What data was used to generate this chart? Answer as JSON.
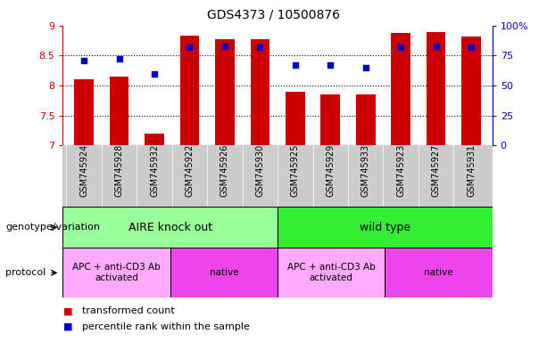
{
  "title": "GDS4373 / 10500876",
  "samples": [
    "GSM745924",
    "GSM745928",
    "GSM745932",
    "GSM745922",
    "GSM745926",
    "GSM745930",
    "GSM745925",
    "GSM745929",
    "GSM745933",
    "GSM745923",
    "GSM745927",
    "GSM745931"
  ],
  "red_values": [
    8.1,
    8.15,
    7.2,
    8.83,
    8.77,
    8.78,
    7.9,
    7.85,
    7.85,
    8.88,
    8.9,
    8.82
  ],
  "blue_values": [
    71,
    72,
    60,
    82,
    83,
    82,
    67,
    67,
    65,
    82,
    83,
    82
  ],
  "ylim_left": [
    7.0,
    9.0
  ],
  "yticks_left": [
    7.0,
    7.5,
    8.0,
    8.5,
    9.0
  ],
  "ytick_labels_left": [
    "7",
    "7.5",
    "8",
    "8.5",
    "9"
  ],
  "ytick_labels_right": [
    "0",
    "25",
    "50",
    "75",
    "100%"
  ],
  "hlines": [
    7.5,
    8.0,
    8.5
  ],
  "bar_color": "#cc0000",
  "dot_color": "#0000cc",
  "bar_bottom": 7.0,
  "genotype_groups": [
    {
      "label": "AIRE knock out",
      "start": 0,
      "end": 5,
      "color": "#99ff99"
    },
    {
      "label": "wild type",
      "start": 6,
      "end": 11,
      "color": "#33ee33"
    }
  ],
  "protocol_groups": [
    {
      "label": "APC + anti-CD3 Ab\nactivated",
      "start": 0,
      "end": 2,
      "color": "#ffaaff"
    },
    {
      "label": "native",
      "start": 3,
      "end": 5,
      "color": "#ee44ee"
    },
    {
      "label": "APC + anti-CD3 Ab\nactivated",
      "start": 6,
      "end": 8,
      "color": "#ffaaff"
    },
    {
      "label": "native",
      "start": 9,
      "end": 11,
      "color": "#ee44ee"
    }
  ],
  "legend_items": [
    {
      "label": "transformed count",
      "color": "#cc0000"
    },
    {
      "label": "percentile rank within the sample",
      "color": "#0000cc"
    }
  ],
  "left_label_color": "#cc0000",
  "right_label_color": "#0000cc",
  "xtick_bg_color": "#cccccc",
  "genotype_label": "genotype/variation",
  "protocol_label": "protocol"
}
